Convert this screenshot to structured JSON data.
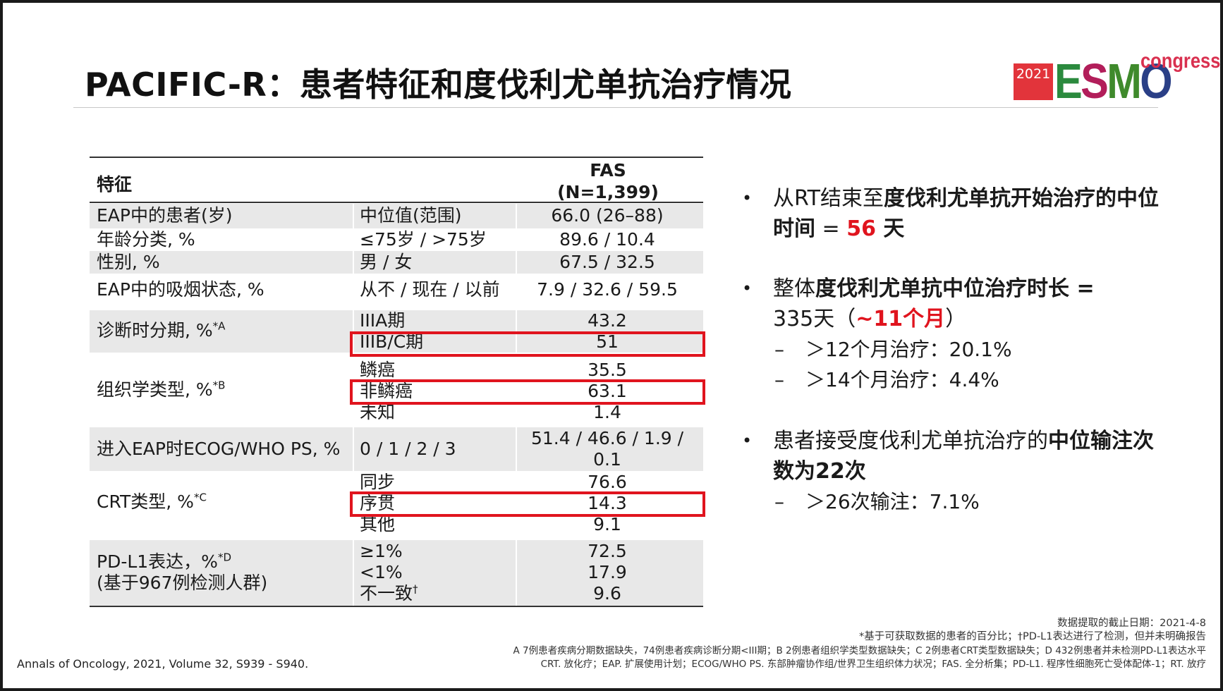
{
  "title": "PACIFIC-R：患者特征和度伐利尤单抗治疗情况",
  "logo": {
    "year": "2021",
    "brand_e": "E",
    "brand_s": "S",
    "brand_m": "M",
    "brand_o": "O",
    "tagline": "congress"
  },
  "table": {
    "header": {
      "feature": "特征",
      "fas_line1": "FAS",
      "fas_line2": "(N=1,399)"
    },
    "rows": [
      {
        "label": "EAP中的患者(岁)",
        "sub": [
          "中位值(范围)"
        ],
        "values": [
          "66.0 (26–88)"
        ]
      },
      {
        "label": "年龄分类, %",
        "sub": [
          "≤75岁 / >75岁"
        ],
        "values": [
          "89.6 / 10.4"
        ]
      },
      {
        "label": "性别, %",
        "sub": [
          "男 / 女"
        ],
        "values": [
          "67.5 / 32.5"
        ]
      },
      {
        "label": "EAP中的吸烟状态, %",
        "sub": [
          "从不 / 现在 / 以前"
        ],
        "values": [
          "7.9 / 32.6 / 59.5"
        ]
      },
      {
        "label": "诊断时分期, %",
        "sup": "*A",
        "sub": [
          "IIIA期",
          "IIIB/C期"
        ],
        "values": [
          "43.2",
          "51"
        ]
      },
      {
        "label": "组织学类型, %",
        "sup": "*B",
        "sub": [
          "鳞癌",
          "非鳞癌",
          "未知"
        ],
        "values": [
          "35.5",
          "63.1",
          "1.4"
        ]
      },
      {
        "label": "进入EAP时ECOG/WHO PS, %",
        "sub": [
          "0 / 1 / 2 / 3"
        ],
        "values": [
          "51.4 / 46.6 / 1.9 /",
          "0.1"
        ]
      },
      {
        "label": "CRT类型, %",
        "sup": "*C",
        "sub": [
          "同步",
          "序贯",
          "其他"
        ],
        "values": [
          "76.6",
          "14.3",
          "9.1"
        ]
      },
      {
        "label": "PD-L1表达，%",
        "sup": "*D",
        "label2": "(基于967例检测人群)",
        "sub": [
          "≥1%",
          "<1%",
          "不一致"
        ],
        "sub_sup": "†",
        "values": [
          "72.5",
          "17.9",
          "9.6"
        ]
      }
    ]
  },
  "bullets": {
    "b1": {
      "t1": "从RT结束至",
      "t2": "度伐利尤单抗开始治疗",
      "t3": "的中位时间",
      "t4": " = ",
      "t5": "56",
      "t6": " 天"
    },
    "b2": {
      "t1": "整体",
      "t2": "度伐利尤单抗中位治疗时长",
      "t3": " = ",
      "t4": "335天（",
      "t5": "~11个月",
      "t6": "）"
    },
    "b2_subs": [
      "＞12个月治疗：20.1%",
      "＞14个月治疗：4.4%"
    ],
    "b3": {
      "t1": "患者接受度伐利尤单抗治疗的",
      "t2": "中位输注次数为22次"
    },
    "b3_subs": [
      "＞26次输注：7.1%"
    ],
    "dot": "•",
    "dash": "–"
  },
  "citation": "Annals of Oncology, 2021, Volume 32, S939 - S940.",
  "footnotes": [
    "数据提取的截止日期：2021-4-8",
    "*基于可获取数据的患者的百分比；†PD-L1表达进行了检测，但并未明确报告",
    "A 7例患者疾病分期数据缺失，74例患者疾病诊断分期<III期；B 2例患者组织学类型数据缺失；C 2例患者CRT类型数据缺失；D 432例患者并未检测PD-L1表达水平",
    "CRT. 放化疗；EAP. 扩展使用计划；ECOG/WHO PS. 东部肿瘤协作组/世界卫生组织体力状况；FAS. 全分析集；PD-L1. 程序性细胞死亡受体配体-1；RT. 放疗"
  ]
}
